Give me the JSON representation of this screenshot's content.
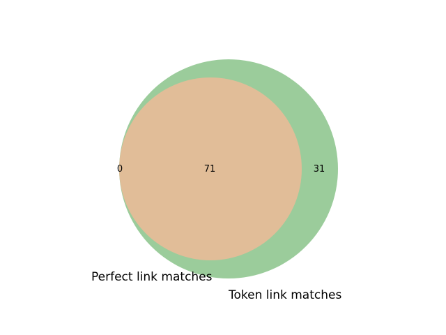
{
  "venn": {
    "sets": [
      {
        "name": "Perfect link matches",
        "color": "#e1bd98"
      },
      {
        "name": "Token link matches",
        "color": "#9bcc9b"
      }
    ],
    "regions": {
      "perfect_only": "0",
      "both": "71",
      "token_only": "31"
    }
  }
}
